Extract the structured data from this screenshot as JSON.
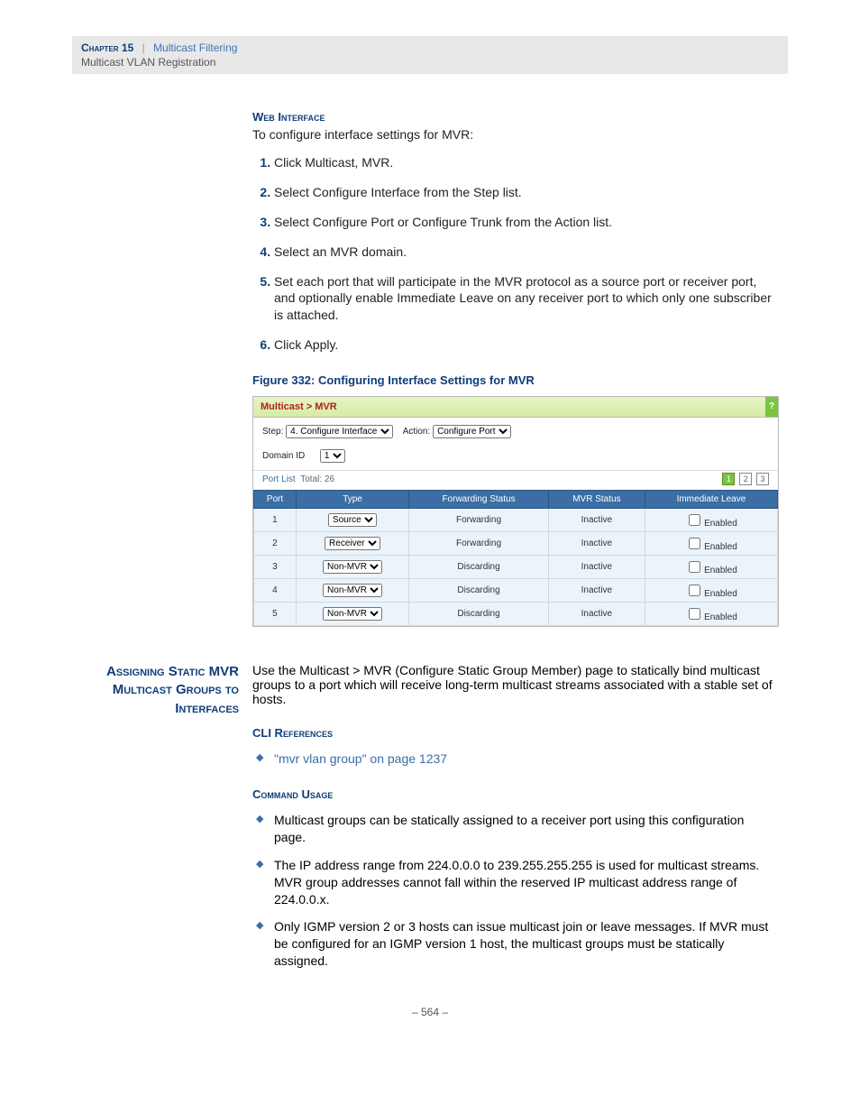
{
  "header": {
    "chapter": "Chapter 15",
    "topic": "Multicast Filtering",
    "subtopic": "Multicast VLAN Registration"
  },
  "webInterface": {
    "title": "Web Interface",
    "intro": "To configure interface settings for MVR:",
    "steps": [
      "Click Multicast, MVR.",
      "Select Configure Interface from the Step list.",
      "Select Configure Port or Configure Trunk from the Action list.",
      "Select an MVR domain.",
      "Set each port that will participate in the MVR protocol as a source port or receiver port, and optionally enable Immediate Leave on any receiver port to which only one subscriber is attached.",
      "Click Apply."
    ]
  },
  "figure": {
    "caption": "Figure 332:  Configuring Interface Settings for MVR",
    "breadcrumb": "Multicast > MVR",
    "stepLabel": "Step:",
    "stepOption": "4. Configure Interface",
    "actionLabel": "Action:",
    "actionOption": "Configure Port",
    "domainLabel": "Domain ID",
    "domainOption": "1",
    "portListLabel": "Port List",
    "portListTotal": "Total: 26",
    "pagerActive": "1",
    "pager2": "2",
    "pager3": "3",
    "tableHeaders": {
      "port": "Port",
      "type": "Type",
      "forwarding": "Forwarding Status",
      "mvrStatus": "MVR Status",
      "immediate": "Immediate Leave"
    },
    "rows": [
      {
        "port": "1",
        "type": "Source",
        "fwd": "Forwarding",
        "status": "Inactive",
        "leave": "Enabled"
      },
      {
        "port": "2",
        "type": "Receiver",
        "fwd": "Forwarding",
        "status": "Inactive",
        "leave": "Enabled"
      },
      {
        "port": "3",
        "type": "Non-MVR",
        "fwd": "Discarding",
        "status": "Inactive",
        "leave": "Enabled"
      },
      {
        "port": "4",
        "type": "Non-MVR",
        "fwd": "Discarding",
        "status": "Inactive",
        "leave": "Enabled"
      },
      {
        "port": "5",
        "type": "Non-MVR",
        "fwd": "Discarding",
        "status": "Inactive",
        "leave": "Enabled"
      }
    ]
  },
  "sideSection": {
    "title": "Assigning Static MVR Multicast Groups to Interfaces",
    "intro": "Use the Multicast > MVR (Configure Static Group Member) page to statically bind multicast groups to a port which will receive long-term multicast streams associated with a stable set of hosts.",
    "cliTitle": "CLI References",
    "cliLink": "\"mvr vlan group\" on page 1237",
    "usageTitle": "Command Usage",
    "usage": [
      "Multicast groups can be statically assigned to a receiver port using this configuration page.",
      "The IP address range from 224.0.0.0 to 239.255.255.255 is used for multicast streams. MVR group addresses cannot fall within the reserved IP multicast address range of 224.0.0.x.",
      "Only IGMP version 2 or 3 hosts can issue multicast join or leave messages. If MVR must be configured for an IGMP version 1 host, the multicast groups must be statically assigned."
    ]
  },
  "pageNum": "–  564  –"
}
